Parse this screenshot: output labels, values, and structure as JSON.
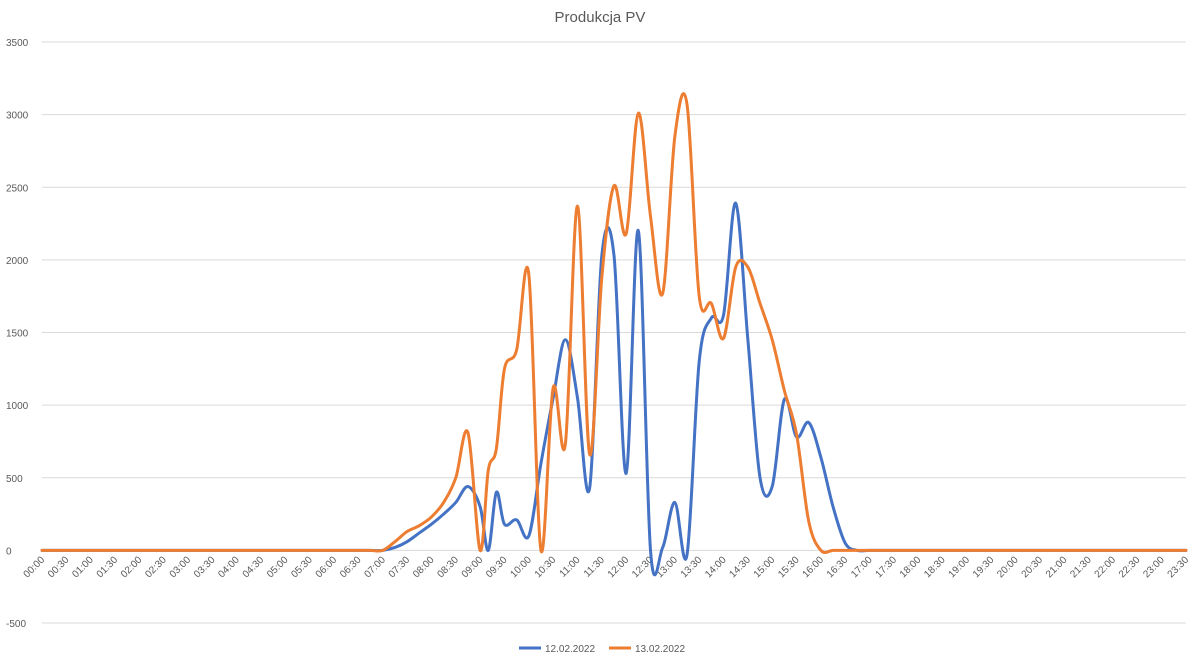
{
  "chart_data": {
    "type": "line",
    "title": "Produkcja PV",
    "xlabel": "",
    "ylabel": "",
    "ylim": [
      -500,
      3500
    ],
    "yticks": [
      -500,
      0,
      500,
      1000,
      1500,
      2000,
      2500,
      3000,
      3500
    ],
    "grid": true,
    "legend_position": "bottom",
    "x": [
      "00:00",
      "00:30",
      "01:00",
      "01:30",
      "02:00",
      "02:30",
      "03:00",
      "03:30",
      "04:00",
      "04:30",
      "05:00",
      "05:30",
      "06:00",
      "06:30",
      "07:00",
      "07:30",
      "08:00",
      "08:30",
      "09:00",
      "09:30",
      "10:00",
      "10:30",
      "11:00",
      "11:30",
      "12:00",
      "12:30",
      "13:00",
      "13:30",
      "14:00",
      "14:30",
      "15:00",
      "15:30",
      "16:00",
      "16:30",
      "17:00",
      "17:30",
      "18:00",
      "18:30",
      "19:00",
      "19:30",
      "20:00",
      "20:30",
      "21:00",
      "21:30",
      "22:00",
      "22:30",
      "23:00",
      "23:30"
    ],
    "series": [
      {
        "name": "12.02.2022",
        "color": "#4472c4",
        "points": [
          [
            "00:00",
            0
          ],
          [
            "00:30",
            0
          ],
          [
            "01:00",
            0
          ],
          [
            "01:30",
            0
          ],
          [
            "02:00",
            0
          ],
          [
            "02:30",
            0
          ],
          [
            "03:00",
            0
          ],
          [
            "03:30",
            0
          ],
          [
            "04:00",
            0
          ],
          [
            "04:30",
            0
          ],
          [
            "05:00",
            0
          ],
          [
            "05:30",
            0
          ],
          [
            "06:00",
            0
          ],
          [
            "06:30",
            0
          ],
          [
            "06:45",
            0
          ],
          [
            "07:00",
            0
          ],
          [
            "07:15",
            20
          ],
          [
            "07:30",
            60
          ],
          [
            "07:45",
            120
          ],
          [
            "08:00",
            180
          ],
          [
            "08:15",
            250
          ],
          [
            "08:30",
            330
          ],
          [
            "08:45",
            440
          ],
          [
            "09:00",
            300
          ],
          [
            "09:10",
            0
          ],
          [
            "09:20",
            400
          ],
          [
            "09:30",
            180
          ],
          [
            "09:45",
            210
          ],
          [
            "10:00",
            100
          ],
          [
            "10:15",
            600
          ],
          [
            "10:30",
            1050
          ],
          [
            "10:45",
            1450
          ],
          [
            "11:00",
            1050
          ],
          [
            "11:15",
            430
          ],
          [
            "11:30",
            2030
          ],
          [
            "11:45",
            2030
          ],
          [
            "12:00",
            530
          ],
          [
            "12:15",
            2200
          ],
          [
            "12:30",
            0
          ],
          [
            "12:45",
            20
          ],
          [
            "13:00",
            330
          ],
          [
            "13:15",
            -30
          ],
          [
            "13:30",
            1300
          ],
          [
            "13:45",
            1600
          ],
          [
            "14:00",
            1620
          ],
          [
            "14:15",
            2390
          ],
          [
            "14:30",
            1450
          ],
          [
            "14:45",
            500
          ],
          [
            "15:00",
            440
          ],
          [
            "15:15",
            1040
          ],
          [
            "15:30",
            780
          ],
          [
            "15:45",
            880
          ],
          [
            "16:00",
            640
          ],
          [
            "16:15",
            300
          ],
          [
            "16:30",
            50
          ],
          [
            "16:45",
            0
          ],
          [
            "17:00",
            0
          ],
          [
            "17:30",
            0
          ],
          [
            "18:00",
            0
          ],
          [
            "18:30",
            0
          ],
          [
            "19:00",
            0
          ],
          [
            "19:30",
            0
          ],
          [
            "20:00",
            0
          ],
          [
            "20:30",
            0
          ],
          [
            "21:00",
            0
          ],
          [
            "21:30",
            0
          ],
          [
            "22:00",
            0
          ],
          [
            "22:30",
            0
          ],
          [
            "23:00",
            0
          ],
          [
            "23:30",
            0
          ]
        ]
      },
      {
        "name": "13.02.2022",
        "color": "#ed7d31",
        "points": [
          [
            "00:00",
            0
          ],
          [
            "00:30",
            0
          ],
          [
            "01:00",
            0
          ],
          [
            "01:30",
            0
          ],
          [
            "02:00",
            0
          ],
          [
            "02:30",
            0
          ],
          [
            "03:00",
            0
          ],
          [
            "03:30",
            0
          ],
          [
            "04:00",
            0
          ],
          [
            "04:30",
            0
          ],
          [
            "05:00",
            0
          ],
          [
            "05:30",
            0
          ],
          [
            "06:00",
            0
          ],
          [
            "06:30",
            0
          ],
          [
            "06:45",
            0
          ],
          [
            "07:00",
            0
          ],
          [
            "07:15",
            60
          ],
          [
            "07:30",
            130
          ],
          [
            "07:45",
            170
          ],
          [
            "08:00",
            230
          ],
          [
            "08:15",
            330
          ],
          [
            "08:30",
            500
          ],
          [
            "08:45",
            810
          ],
          [
            "09:00",
            0
          ],
          [
            "09:10",
            550
          ],
          [
            "09:20",
            700
          ],
          [
            "09:30",
            1250
          ],
          [
            "09:45",
            1380
          ],
          [
            "10:00",
            1900
          ],
          [
            "10:15",
            0
          ],
          [
            "10:30",
            1120
          ],
          [
            "10:45",
            730
          ],
          [
            "11:00",
            2370
          ],
          [
            "11:15",
            660
          ],
          [
            "11:30",
            1880
          ],
          [
            "11:45",
            2510
          ],
          [
            "12:00",
            2180
          ],
          [
            "12:15",
            3010
          ],
          [
            "12:30",
            2300
          ],
          [
            "12:45",
            1770
          ],
          [
            "13:00",
            2850
          ],
          [
            "13:15",
            3070
          ],
          [
            "13:30",
            1750
          ],
          [
            "13:45",
            1700
          ],
          [
            "14:00",
            1460
          ],
          [
            "14:15",
            1950
          ],
          [
            "14:30",
            1950
          ],
          [
            "14:45",
            1700
          ],
          [
            "15:00",
            1450
          ],
          [
            "15:15",
            1100
          ],
          [
            "15:30",
            800
          ],
          [
            "15:45",
            200
          ],
          [
            "16:00",
            0
          ],
          [
            "16:15",
            0
          ],
          [
            "16:30",
            0
          ],
          [
            "16:45",
            0
          ],
          [
            "17:00",
            0
          ],
          [
            "17:30",
            0
          ],
          [
            "18:00",
            0
          ],
          [
            "18:30",
            0
          ],
          [
            "19:00",
            0
          ],
          [
            "19:30",
            0
          ],
          [
            "20:00",
            0
          ],
          [
            "20:30",
            0
          ],
          [
            "21:00",
            0
          ],
          [
            "21:30",
            0
          ],
          [
            "22:00",
            0
          ],
          [
            "22:30",
            0
          ],
          [
            "23:00",
            0
          ],
          [
            "23:30",
            0
          ]
        ]
      }
    ]
  }
}
